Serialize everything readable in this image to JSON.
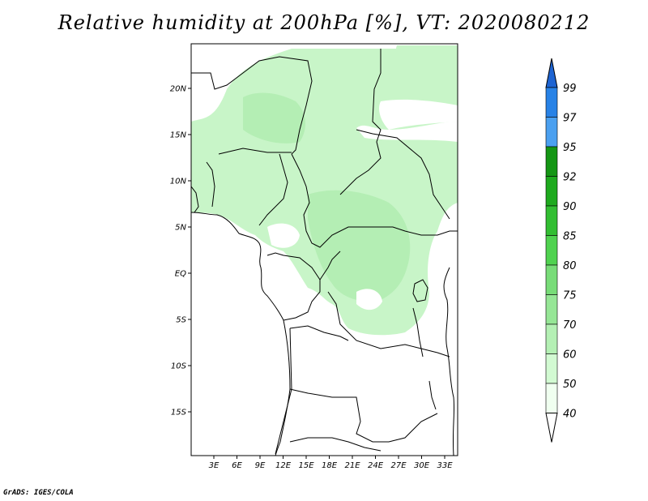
{
  "title": "Relative humidity at 200hPa [%], VT: 2020080212",
  "credit": "GrADS: IGES/COLA",
  "map": {
    "lon_range": [
      0,
      35
    ],
    "lat_range": [
      -20,
      25
    ],
    "lat_ticks": [
      {
        "value": 20,
        "label": "20N"
      },
      {
        "value": 15,
        "label": "15N"
      },
      {
        "value": 10,
        "label": "10N"
      },
      {
        "value": 5,
        "label": "5N"
      },
      {
        "value": 0,
        "label": "EQ"
      },
      {
        "value": -5,
        "label": "5S"
      },
      {
        "value": -10,
        "label": "10S"
      },
      {
        "value": -15,
        "label": "15S"
      }
    ],
    "lon_ticks": [
      {
        "value": 3,
        "label": "3E"
      },
      {
        "value": 6,
        "label": "6E"
      },
      {
        "value": 9,
        "label": "9E"
      },
      {
        "value": 12,
        "label": "12E"
      },
      {
        "value": 15,
        "label": "15E"
      },
      {
        "value": 18,
        "label": "18E"
      },
      {
        "value": 21,
        "label": "21E"
      },
      {
        "value": 24,
        "label": "24E"
      },
      {
        "value": 27,
        "label": "27E"
      },
      {
        "value": 30,
        "label": "30E"
      },
      {
        "value": 33,
        "label": "33E"
      }
    ]
  },
  "colorbar": {
    "levels": [
      "99",
      "97",
      "95",
      "92",
      "90",
      "85",
      "80",
      "75",
      "70",
      "60",
      "50",
      "40"
    ],
    "colors": [
      "#1e64d2",
      "#2882e6",
      "#4ba0f0",
      "#149614",
      "#1eaa1e",
      "#32be32",
      "#50d250",
      "#78dc78",
      "#96e696",
      "#b4f0b4",
      "#d2fad2",
      "#f0fff0"
    ]
  }
}
